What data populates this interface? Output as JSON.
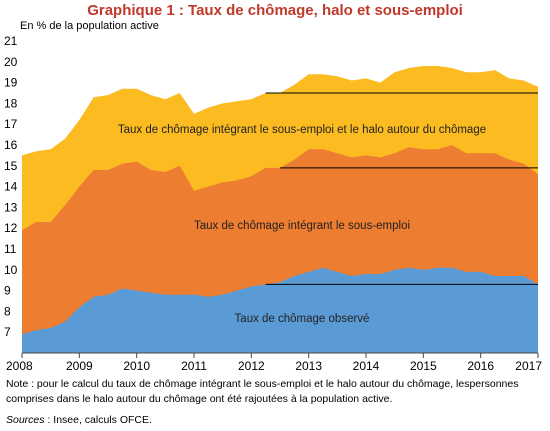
{
  "title": "Graphique 1 : Taux de chômage, halo et sous-emploi",
  "note": "Note : pour le calcul du taux de chômage intégrant le sous-emploi et le halo autour du chômage, lespersonnes comprises dans le halo autour du chômage ont été rajoutées à la population active.",
  "sources_label": "Sources",
  "sources_text": " : Insee, calculs OFCE.",
  "colors": {
    "halo": "#fbbb21",
    "sous_emploi": "#ed7d31",
    "observe": "#5b9bd5",
    "title": "#c0392b"
  },
  "chart_data": {
    "type": "area",
    "stacked": false,
    "ylabel": "En % de la population active",
    "xlabel": "",
    "ylim": [
      6,
      21
    ],
    "xlim": [
      2008,
      2017
    ],
    "yticks": [
      7,
      8,
      9,
      10,
      11,
      12,
      13,
      14,
      15,
      16,
      17,
      18,
      19,
      20,
      21
    ],
    "xticks": [
      2008,
      2009,
      2010,
      2011,
      2012,
      2013,
      2014,
      2015,
      2016,
      2017
    ],
    "grid": false,
    "x": [
      2008.0,
      2008.25,
      2008.5,
      2008.75,
      2009.0,
      2009.25,
      2009.5,
      2009.75,
      2010.0,
      2010.25,
      2010.5,
      2010.75,
      2011.0,
      2011.25,
      2011.5,
      2011.75,
      2012.0,
      2012.25,
      2012.5,
      2012.75,
      2013.0,
      2013.25,
      2013.5,
      2013.75,
      2014.0,
      2014.25,
      2014.5,
      2014.75,
      2015.0,
      2015.25,
      2015.5,
      2015.75,
      2016.0,
      2016.25,
      2016.5,
      2016.75,
      2017.0
    ],
    "series": [
      {
        "key": "halo",
        "name": "Taux de chômage intégrant le sous-emploi et le halo autour du chômage",
        "values": [
          15.5,
          15.7,
          15.8,
          16.3,
          17.2,
          18.3,
          18.4,
          18.7,
          18.7,
          18.4,
          18.2,
          18.5,
          17.5,
          17.8,
          18.0,
          18.1,
          18.2,
          18.5,
          18.5,
          18.9,
          19.4,
          19.4,
          19.3,
          19.1,
          19.2,
          19.0,
          19.5,
          19.7,
          19.8,
          19.8,
          19.7,
          19.5,
          19.5,
          19.6,
          19.2,
          19.1,
          18.8
        ]
      },
      {
        "key": "sous_emploi",
        "name": "Taux de chômage intégrant le sous-emploi",
        "values": [
          11.9,
          12.3,
          12.3,
          13.1,
          14.0,
          14.8,
          14.8,
          15.1,
          15.2,
          14.8,
          14.7,
          15.0,
          13.8,
          14.0,
          14.2,
          14.3,
          14.5,
          14.9,
          14.9,
          15.3,
          15.8,
          15.8,
          15.6,
          15.4,
          15.5,
          15.4,
          15.6,
          15.9,
          15.8,
          15.8,
          16.0,
          15.6,
          15.6,
          15.6,
          15.3,
          15.1,
          14.6
        ]
      },
      {
        "key": "observe",
        "name": "Taux de chômage observé",
        "values": [
          6.9,
          7.1,
          7.2,
          7.5,
          8.2,
          8.7,
          8.8,
          9.1,
          9.0,
          8.9,
          8.8,
          8.8,
          8.8,
          8.7,
          8.8,
          9.0,
          9.2,
          9.3,
          9.4,
          9.7,
          9.9,
          10.1,
          9.9,
          9.7,
          9.8,
          9.8,
          10.0,
          10.1,
          10.0,
          10.1,
          10.1,
          9.9,
          9.9,
          9.7,
          9.7,
          9.7,
          9.3
        ]
      }
    ],
    "reference_lines": [
      {
        "series": "halo",
        "from": 2012.25,
        "to": 2017,
        "y": 18.5
      },
      {
        "series": "sous_emploi",
        "from": 2012.5,
        "to": 2017,
        "y": 14.9
      },
      {
        "series": "observe",
        "from": 2012.25,
        "to": 2017,
        "y": 9.3
      }
    ]
  }
}
